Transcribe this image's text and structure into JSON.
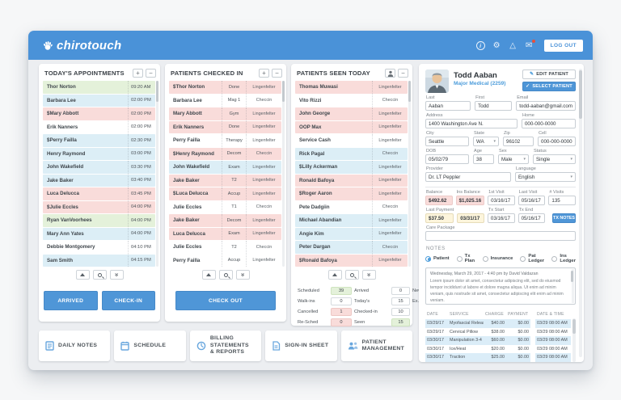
{
  "colors": {
    "topbar": "#4a92d8",
    "accent": "#4f96d7",
    "row_green": "#e4f1da",
    "row_blue": "#dceef6",
    "row_pink": "#f9dcda",
    "row_white": "#ffffff"
  },
  "topbar": {
    "logo_text": "chirotouch",
    "logout_label": "LOG OUT"
  },
  "appointments": {
    "title": "TODAY'S APPOINTMENTS",
    "arrived_label": "ARRIVED",
    "checkin_label": "CHECK-IN",
    "rows": [
      {
        "name": "Thor Norton",
        "time": "09:20 AM",
        "color": "green"
      },
      {
        "name": "Barbara Lee",
        "time": "02:00 PM",
        "color": "blue"
      },
      {
        "name": "$Mary Abbott",
        "time": "02:00 PM",
        "color": "pink"
      },
      {
        "name": "Erik Nanners",
        "time": "02:00 PM",
        "color": "white"
      },
      {
        "name": "$Perry Failla",
        "time": "02:30 PM",
        "color": "blue"
      },
      {
        "name": "Henry Raymond",
        "time": "03:00 PM",
        "color": "blue"
      },
      {
        "name": "John Wakefield",
        "time": "03:30 PM",
        "color": "blue"
      },
      {
        "name": "Jake Baker",
        "time": "03:40 PM",
        "color": "blue"
      },
      {
        "name": "Luca Delucca",
        "time": "03:45 PM",
        "color": "pink"
      },
      {
        "name": "$Julie Eccles",
        "time": "04:00 PM",
        "color": "pink"
      },
      {
        "name": "Ryan VanVoorhees",
        "time": "04:00 PM",
        "color": "green"
      },
      {
        "name": "Mary Ann Yates",
        "time": "04:00 PM",
        "color": "blue"
      },
      {
        "name": "Debbie Montgomery",
        "time": "04:10 PM",
        "color": "white"
      },
      {
        "name": "Sam Smith",
        "time": "04:15 PM",
        "color": "blue"
      }
    ]
  },
  "checked_in": {
    "title": "PATIENTS CHECKED IN",
    "checkout_label": "CHECK OUT",
    "rows": [
      {
        "name": "$Thor Norton",
        "status": "Done",
        "provider": "Lingenfelter",
        "color": "pink"
      },
      {
        "name": "Barbara Lee",
        "status": "Mag 1",
        "provider": "Checcin",
        "color": "white"
      },
      {
        "name": "Mary Abbott",
        "status": "Gym",
        "provider": "Lingenfelter",
        "color": "pink"
      },
      {
        "name": "Erik Nanners",
        "status": "Done",
        "provider": "Lingenfelter",
        "color": "pink"
      },
      {
        "name": "Perry Failla",
        "status": "Therapy",
        "provider": "Lingenfelter",
        "color": "white"
      },
      {
        "name": "$Henry Raymond",
        "status": "Decom",
        "provider": "Checcin",
        "color": "pink"
      },
      {
        "name": "John Wakefield",
        "status": "Exam",
        "provider": "Lingenfelter",
        "color": "blue"
      },
      {
        "name": "Jake Baker",
        "status": "T2",
        "provider": "Lingenfelter",
        "color": "pink"
      },
      {
        "name": "$Luca Delucca",
        "status": "Accup",
        "provider": "Lingenfelter",
        "color": "pink"
      },
      {
        "name": "Julie Eccles",
        "status": "T1",
        "provider": "Checcin",
        "color": "white"
      },
      {
        "name": "Jake Baker",
        "status": "Decom",
        "provider": "Lingenfelter",
        "color": "pink"
      },
      {
        "name": "Luca Delucca",
        "status": "Exam",
        "provider": "Lingenfelter",
        "color": "pink"
      },
      {
        "name": "Julie Eccles",
        "status": "T2",
        "provider": "Checcin",
        "color": "white"
      },
      {
        "name": "Perry Failla",
        "status": "Accup",
        "provider": "Lingenfelter",
        "color": "white"
      }
    ]
  },
  "seen_today": {
    "title": "PATIENTS SEEN TODAY",
    "rows": [
      {
        "name": "Thomas Muwasi",
        "provider": "Lingenfelter",
        "color": "pink"
      },
      {
        "name": "Vito Rizzi",
        "provider": "Checcin",
        "color": "white"
      },
      {
        "name": "John George",
        "provider": "Lingenfelter",
        "color": "pink"
      },
      {
        "name": "OOP Max",
        "provider": "Lingenfelter",
        "color": "pink"
      },
      {
        "name": "Service Cash",
        "provider": "Lingenfelter",
        "color": "white"
      },
      {
        "name": "Rick Pagal",
        "provider": "Checcin",
        "color": "blue"
      },
      {
        "name": "$Lilly Ackerman",
        "provider": "Lingenfelter",
        "color": "blue"
      },
      {
        "name": "Ronald Bafoya",
        "provider": "Lingenfelter",
        "color": "pink"
      },
      {
        "name": "$Roger Aaron",
        "provider": "Lingenfelter",
        "color": "pink"
      },
      {
        "name": "Pete Dadgiin",
        "provider": "Checcin",
        "color": "white"
      },
      {
        "name": "Michael Abandian",
        "provider": "Lingenfelter",
        "color": "blue"
      },
      {
        "name": "Angie Kim",
        "provider": "Lingenfelter",
        "color": "blue"
      },
      {
        "name": "Peter Dargan",
        "provider": "Checcin",
        "color": "blue"
      },
      {
        "name": "$Ronald Bafoya",
        "provider": "Lingenfelter",
        "color": "pink"
      }
    ],
    "stats_rows": [
      [
        {
          "label": "Scheduled",
          "value": "39",
          "color": "green"
        },
        {
          "label": "Arrived",
          "value": "0",
          "color": "white"
        },
        {
          "label": "New",
          "value": "9",
          "color": "white"
        }
      ],
      [
        {
          "label": "Walk-ins",
          "value": "0",
          "color": "white"
        },
        {
          "label": "Today's",
          "value": "15",
          "color": "white"
        },
        {
          "label": "Ex.",
          "value": "31",
          "color": "white"
        }
      ],
      [
        {
          "label": "Cancelled",
          "value": "1",
          "color": "pink"
        },
        {
          "label": "Checked-in",
          "value": "10",
          "color": "white"
        }
      ],
      [
        {
          "label": "Re-Sched",
          "value": "0",
          "color": "pink"
        },
        {
          "label": "Seen",
          "value": "15",
          "color": "green"
        }
      ]
    ]
  },
  "patient": {
    "name": "Todd Aaban",
    "plan": "Major Medical (2259)",
    "edit_label": "EDIT PATIENT",
    "select_label": "SELECT PATIENT",
    "fields": {
      "last": {
        "label": "Last",
        "value": "Aaban"
      },
      "first": {
        "label": "First",
        "value": "Todd"
      },
      "email": {
        "label": "Email",
        "value": "todd-aaban@gmail.com"
      },
      "address": {
        "label": "Address",
        "value": "1400 Washington Ave N."
      },
      "home": {
        "label": "Home",
        "value": "000-000-0000"
      },
      "city": {
        "label": "City",
        "value": "Seattle"
      },
      "state": {
        "label": "State",
        "value": "WA"
      },
      "zip": {
        "label": "Zip",
        "value": "96102"
      },
      "cell": {
        "label": "Cell",
        "value": "000-000-0000"
      },
      "dob": {
        "label": "DOB",
        "value": "05/02/79"
      },
      "age": {
        "label": "Age",
        "value": "38"
      },
      "sex": {
        "label": "Sex",
        "value": "Male"
      },
      "status": {
        "label": "Status",
        "value": "Single"
      },
      "provider": {
        "label": "Provider",
        "value": "Dr. LT Peppler"
      },
      "language": {
        "label": "Language",
        "value": "English"
      },
      "balance": {
        "label": "Balance",
        "value": "$492.62"
      },
      "ins_balance": {
        "label": "Ins Balance",
        "value": "$1,025.16"
      },
      "first_visit": {
        "label": "1st Visit",
        "value": "03/16/17"
      },
      "last_visit": {
        "label": "Last Visit",
        "value": "05/16/17"
      },
      "num_visits": {
        "label": "# Visits",
        "value": "135"
      },
      "last_payment": {
        "label": "Last Payment",
        "value": "$37.50",
        "date": "03/31/17"
      },
      "tx_start": {
        "label": "Tx Start",
        "value": "03/16/17"
      },
      "tx_end": {
        "label": "Tx End",
        "value": "05/16/17"
      },
      "tx_notes_label": "TX NOTES",
      "care_package": {
        "label": "Care Package",
        "value": ""
      }
    },
    "notes": {
      "section_label": "NOTES",
      "tabs": [
        {
          "label": "Patient"
        },
        {
          "label": "Tx Plan"
        },
        {
          "label": "Insurance"
        },
        {
          "label": "Pat Ledger"
        },
        {
          "label": "Ins Ledger"
        }
      ],
      "entry_heading": "Wednesday, March 29, 2017 - 4:40 pm by David Valdazan",
      "entry_body": "Lorem ipsum dolor sit amet, consectetur adipiscing elit, sed do eiusmod tempor incididunt ut labore et dolore magna aliqua. Ut enim ad minim veniam, quis nostrude sit amet, consectetur adipiscing elit enim ad minim veniam."
    },
    "table": {
      "headers": [
        "DATE",
        "SERVICE",
        "CHARGE",
        "PAYMENT",
        "DATE & TIME"
      ],
      "rows": [
        [
          "03/29/17",
          "Myofascial Release",
          "$40.00",
          "$0.00",
          "03/29 08:00 AM"
        ],
        [
          "03/29/17",
          "Cervical Pillow",
          "$38.00",
          "$0.00",
          "03/29 08:00 AM"
        ],
        [
          "03/30/17",
          "Manipulation 3-4",
          "$60.00",
          "$0.00",
          "03/29 08:00 AM"
        ],
        [
          "03/30/17",
          "Ice/Heat",
          "$20.00",
          "$0.00",
          "03/29 08:00 AM"
        ],
        [
          "03/30/17",
          "Traction",
          "$25.00",
          "$0.00",
          "03/29 08:00 AM"
        ]
      ]
    }
  },
  "bottom_buttons": [
    {
      "label": "DAILY NOTES",
      "icon": "daily-notes-icon"
    },
    {
      "label": "SCHEDULE",
      "icon": "schedule-icon"
    },
    {
      "label": "BILLING STATEMENTS & REPORTS",
      "icon": "billing-reports-icon"
    },
    {
      "label": "SIGN-IN SHEET",
      "icon": "sign-in-sheet-icon"
    },
    {
      "label": "PATIENT MANAGEMENT",
      "icon": "patient-management-icon"
    }
  ]
}
